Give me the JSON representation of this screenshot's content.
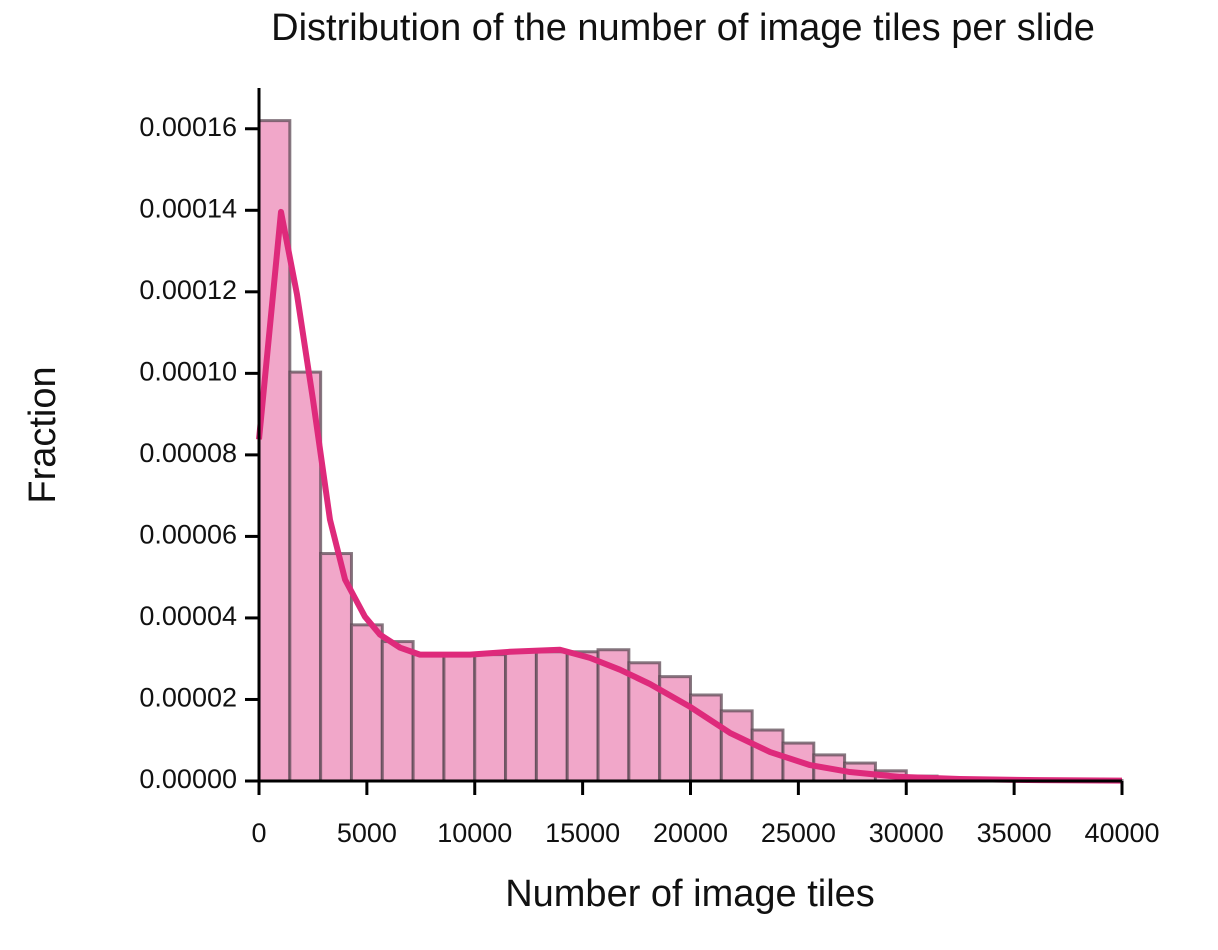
{
  "chart_data": {
    "type": "histogram",
    "title": "Distribution of the number of image tiles per slide",
    "xlabel": "Number of image tiles",
    "ylabel": "Fraction",
    "bins": [
      0,
      1428.57,
      2857.14,
      4285.71,
      5714.29,
      7142.86,
      8571.43,
      10000,
      11428.57,
      12857.14,
      14285.71,
      15714.29,
      17142.86,
      18571.43,
      20000,
      21428.57,
      22857.14,
      24285.71,
      25714.29,
      27142.86,
      28571.43,
      30000,
      31428.57,
      32857.14,
      34285.71,
      35714.29,
      37142.86,
      38571.43,
      40000
    ],
    "values": [
      0.000162,
      0.0001003,
      5.58e-05,
      3.83e-05,
      3.42e-05,
      3.1e-05,
      3.1e-05,
      3.1e-05,
      3.17e-05,
      3.17e-05,
      3.17e-05,
      3.22e-05,
      2.9e-05,
      2.56e-05,
      2.11e-05,
      1.72e-05,
      1.25e-05,
      9.3e-06,
      6.4e-06,
      4.4e-06,
      2.5e-06,
      1.2e-06,
      7e-07,
      5e-07,
      3e-07,
      2e-07,
      1e-07,
      1e-07
    ],
    "color": "#f1a7c9",
    "edgecolor": "#5e4b55",
    "kde": {
      "color": "#de2a7b",
      "x": [
        0,
        1020,
        1760,
        2500,
        3290,
        3990,
        4910,
        5610,
        6540,
        7460,
        9780,
        11630,
        13950,
        15340,
        16730,
        18120,
        19980,
        21830,
        23690,
        25540,
        27390,
        29710,
        32490,
        36200,
        40000
      ],
      "values": [
        8.38e-05,
        0.0001396,
        0.0001194,
        9.36e-05,
        6.41e-05,
        4.94e-05,
        4.03e-05,
        3.59e-05,
        3.27e-05,
        3.1e-05,
        3.1e-05,
        3.17e-05,
        3.22e-05,
        3.02e-05,
        2.73e-05,
        2.38e-05,
        1.82e-05,
        1.18e-05,
        7.1e-06,
        3.9e-06,
        2.2e-06,
        1e-06,
        5e-07,
        2e-07,
        1e-07
      ]
    },
    "xlim": [
      0,
      40000
    ],
    "ylim": [
      0,
      0.00017
    ],
    "xticks": [
      0,
      5000,
      10000,
      15000,
      20000,
      25000,
      30000,
      35000,
      40000
    ],
    "yticks": [
      {
        "value": 0,
        "label": "0.00000"
      },
      {
        "value": 2e-05,
        "label": "0.00002"
      },
      {
        "value": 4e-05,
        "label": "0.00004"
      },
      {
        "value": 6e-05,
        "label": "0.00006"
      },
      {
        "value": 8e-05,
        "label": "0.00008"
      },
      {
        "value": 0.0001,
        "label": "0.00010"
      },
      {
        "value": 0.00012,
        "label": "0.00012"
      },
      {
        "value": 0.00014,
        "label": "0.00014"
      },
      {
        "value": 0.00016,
        "label": "0.00016"
      }
    ]
  }
}
